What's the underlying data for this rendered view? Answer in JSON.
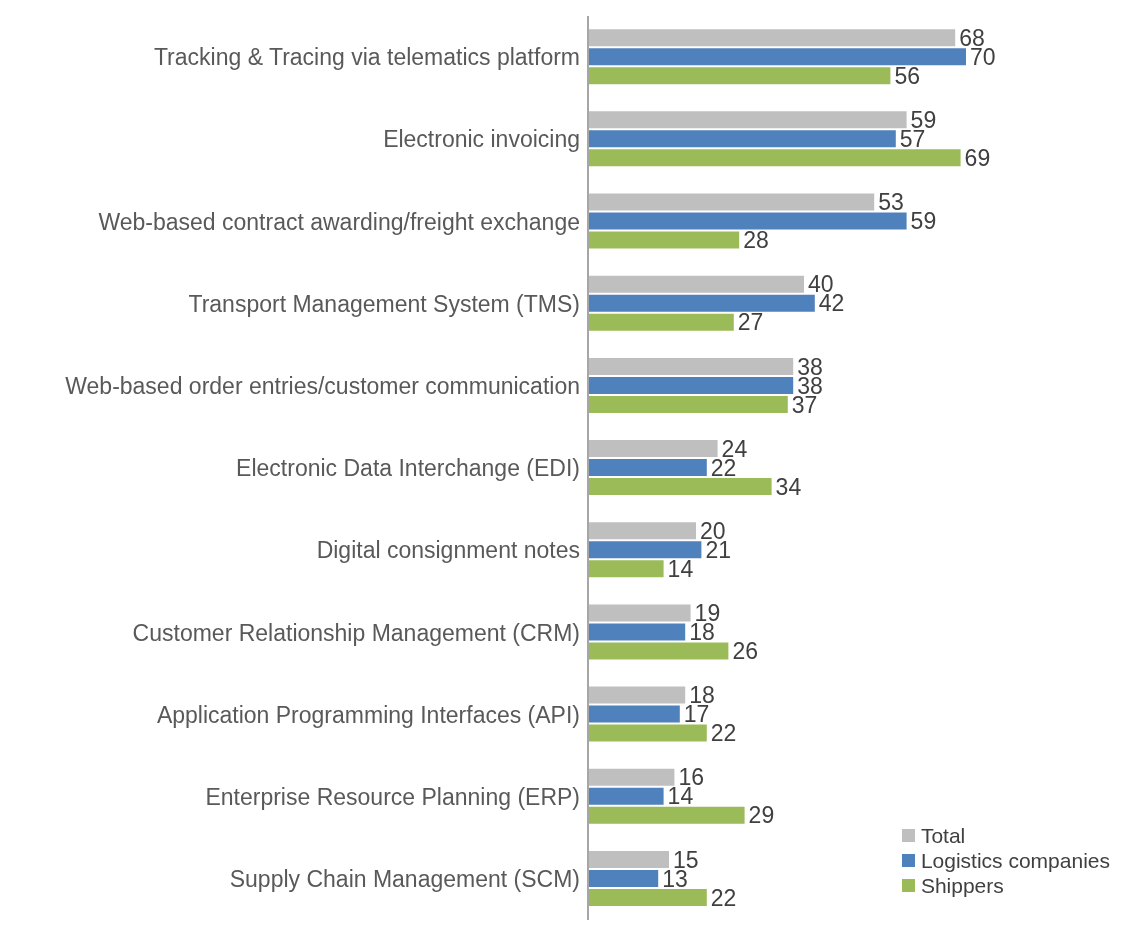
{
  "chart_data": {
    "type": "bar",
    "orientation": "horizontal",
    "categories": [
      "Tracking & Tracing via telematics platform",
      "Electronic invoicing",
      "Web-based contract awarding/freight exchange",
      "Transport Management System (TMS)",
      "Web-based order entries/customer communication",
      "Electronic Data Interchange (EDI)",
      "Digital consignment notes",
      "Customer Relationship Management (CRM)",
      "Application Programming Interfaces (API)",
      "Enterprise Resource Planning (ERP)",
      "Supply Chain Management (SCM)"
    ],
    "series": [
      {
        "name": "Total",
        "color": "#bfbfbf",
        "values": [
          68,
          59,
          53,
          40,
          38,
          24,
          20,
          19,
          18,
          16,
          15
        ]
      },
      {
        "name": "Logistics companies",
        "color": "#4f81bd",
        "values": [
          70,
          57,
          59,
          42,
          38,
          22,
          21,
          18,
          17,
          14,
          13
        ]
      },
      {
        "name": "Shippers",
        "color": "#9bbb59",
        "values": [
          56,
          69,
          28,
          27,
          37,
          34,
          14,
          26,
          22,
          29,
          22
        ]
      }
    ],
    "data_labels": true,
    "legend": "bottom right"
  }
}
